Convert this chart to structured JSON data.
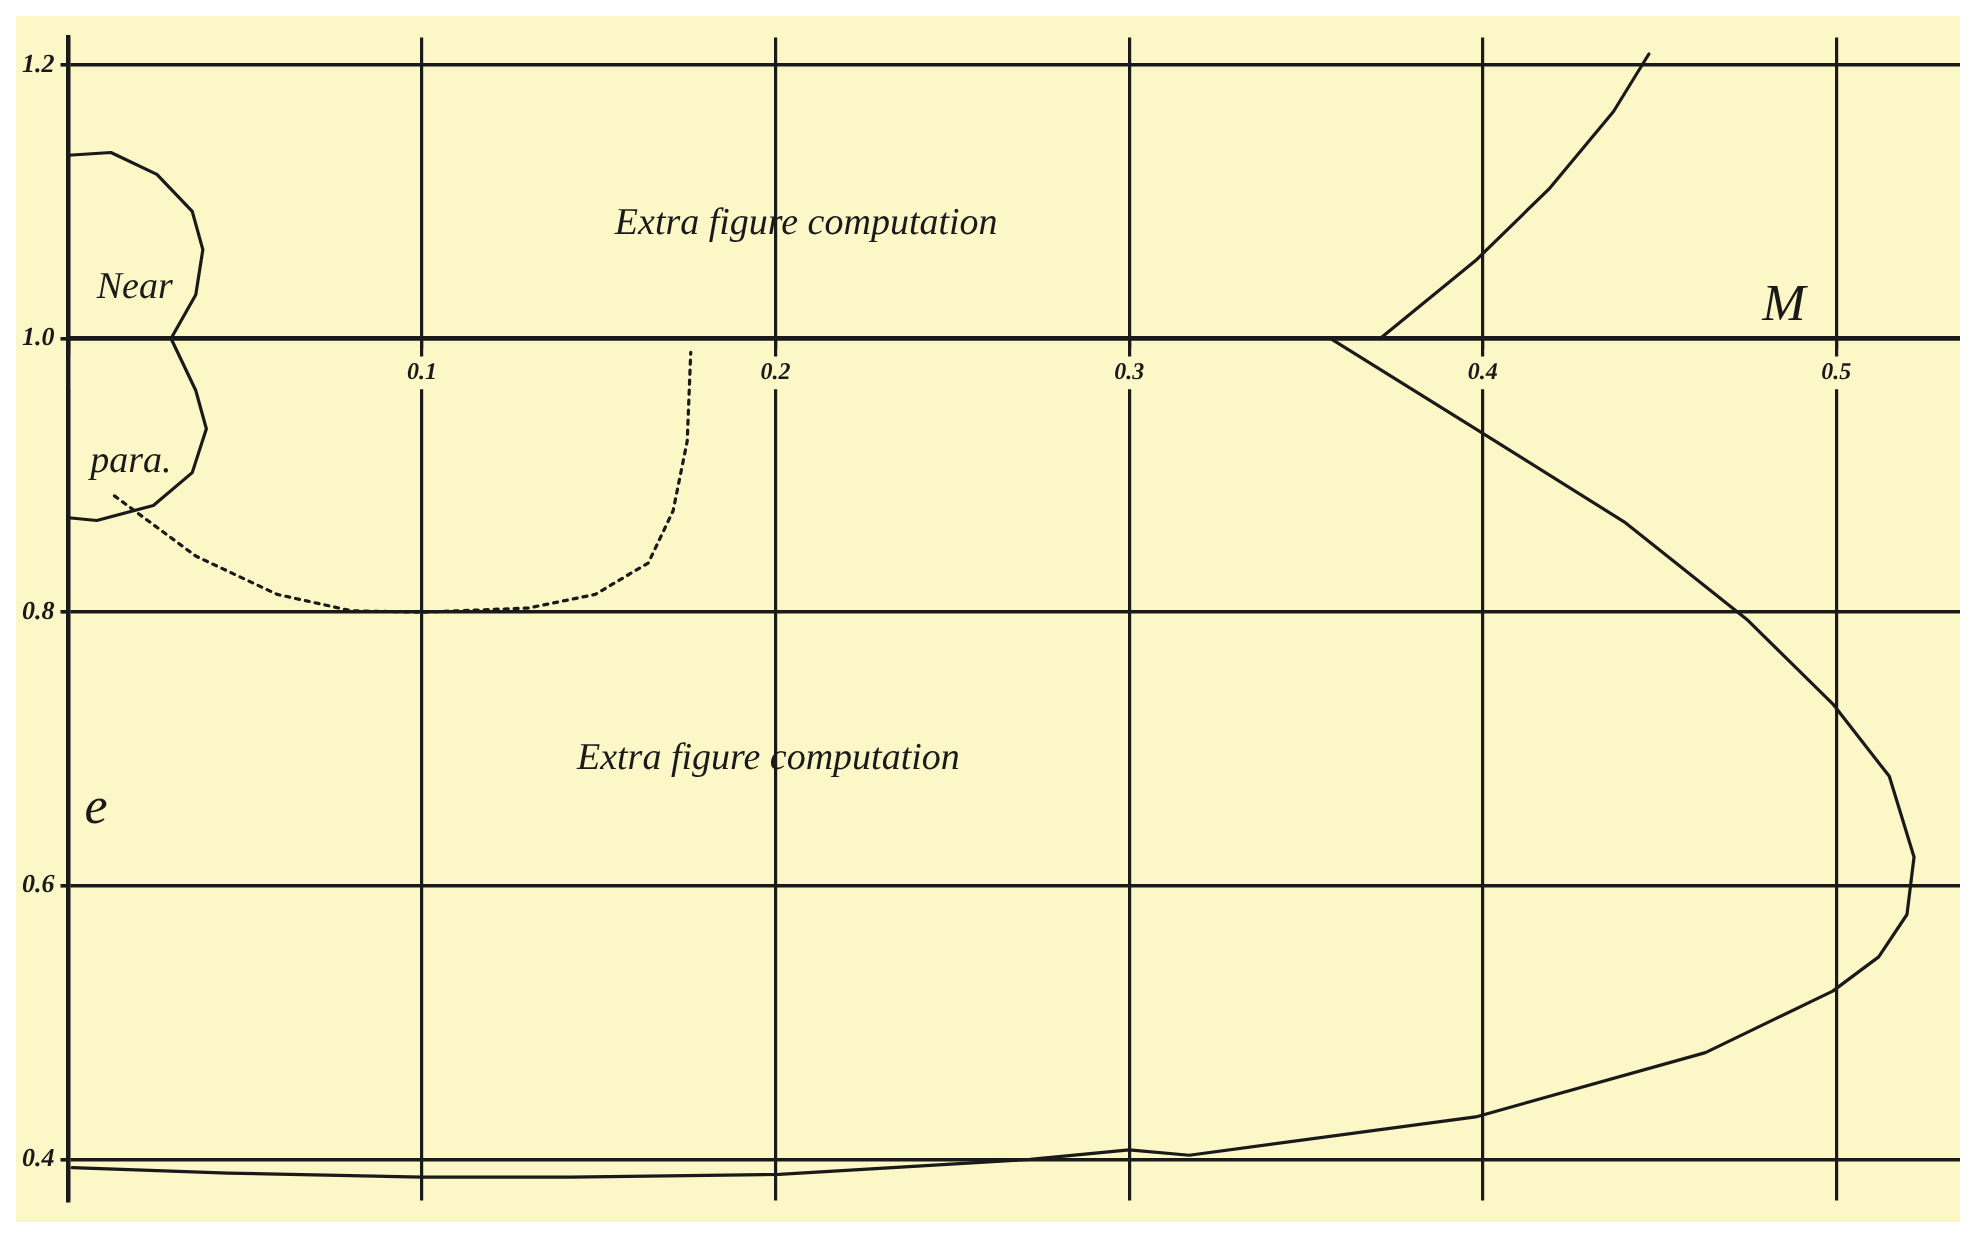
{
  "chart_data": {
    "type": "line",
    "xlabel": "M",
    "ylabel": "e",
    "xlim": [
      0,
      0.535
    ],
    "ylim": [
      0.37,
      1.22
    ],
    "xticks": [
      {
        "value": 0,
        "label": null
      },
      0.1,
      0.2,
      0.3,
      0.4,
      0.5
    ],
    "yticks": [
      0.4,
      0.6,
      0.8,
      {
        "value": 1,
        "label": "1.0"
      },
      1.2
    ],
    "grid": true,
    "marker": "none",
    "series": [
      {
        "color": "#1a1a1a",
        "line_style": "solid",
        "x": [
          0.357,
          0.398,
          0.44,
          0.475,
          0.499,
          0.515,
          0.522,
          0.52,
          0.512,
          0.499,
          0.463,
          0.398,
          0.317,
          0.3,
          0.272,
          0.201,
          0.142,
          0.1,
          0.045,
          0.001
        ],
        "values": [
          1.0,
          0.934,
          0.866,
          0.794,
          0.733,
          0.68,
          0.621,
          0.579,
          0.548,
          0.523,
          0.478,
          0.431,
          0.403,
          0.407,
          0.4,
          0.389,
          0.387,
          0.387,
          0.39,
          0.394
        ]
      },
      {
        "color": "#1a1a1a",
        "line_style": "solid",
        "x": [
          0.371,
          0.398,
          0.419,
          0.437,
          0.447
        ],
        "values": [
          1.0,
          1.057,
          1.11,
          1.166,
          1.208
        ]
      },
      {
        "color": "#1a1a1a",
        "line_style": "dotted",
        "x": [
          0.013,
          0.036,
          0.059,
          0.08,
          0.1,
          0.13,
          0.149,
          0.164,
          0.171,
          0.175,
          0.176
        ],
        "values": [
          0.885,
          0.841,
          0.813,
          0.801,
          0.8,
          0.803,
          0.813,
          0.836,
          0.874,
          0.925,
          0.99
        ]
      },
      {
        "color": "#1a1a1a",
        "line_style": "solid",
        "x": [
          0.0,
          0.012,
          0.025,
          0.035,
          0.038,
          0.036,
          0.029,
          0.036,
          0.039,
          0.035,
          0.024,
          0.008,
          0.0
        ],
        "values": [
          1.134,
          1.136,
          1.12,
          1.093,
          1.065,
          1.032,
          1.0,
          0.962,
          0.934,
          0.902,
          0.878,
          0.867,
          0.869
        ]
      }
    ],
    "annotations": [
      "Extra figure computation",
      "Extra figure computation",
      "Near",
      "para."
    ]
  }
}
